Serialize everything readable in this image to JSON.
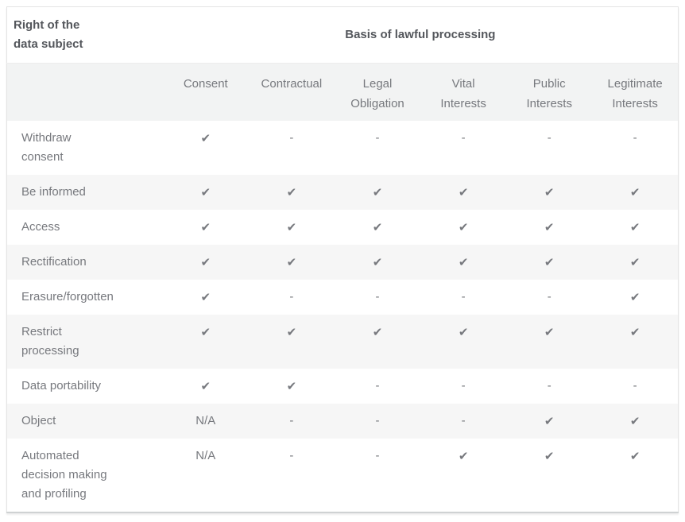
{
  "table": {
    "corner_header": "Right of the\ndata subject",
    "group_header": "Basis of lawful processing",
    "columns": [
      "Consent",
      "Contractual",
      "Legal\nObligation",
      "Vital\nInterests",
      "Public\nInterests",
      "Legitimate\nInterests"
    ],
    "rows": [
      {
        "label": "Withdraw\nconsent",
        "values": [
          "check",
          "dash",
          "dash",
          "dash",
          "dash",
          "dash"
        ]
      },
      {
        "label": "Be informed",
        "values": [
          "check",
          "check",
          "check",
          "check",
          "check",
          "check"
        ]
      },
      {
        "label": "Access",
        "values": [
          "check",
          "check",
          "check",
          "check",
          "check",
          "check"
        ]
      },
      {
        "label": "Rectification",
        "values": [
          "check",
          "check",
          "check",
          "check",
          "check",
          "check"
        ]
      },
      {
        "label": "Erasure/forgotten",
        "values": [
          "check",
          "dash",
          "dash",
          "dash",
          "dash",
          "check"
        ]
      },
      {
        "label": "Restrict\nprocessing",
        "values": [
          "check",
          "check",
          "check",
          "check",
          "check",
          "check"
        ]
      },
      {
        "label": "Data portability",
        "values": [
          "check",
          "check",
          "dash",
          "dash",
          "dash",
          "dash"
        ]
      },
      {
        "label": "Object",
        "values": [
          "na",
          "dash",
          "dash",
          "dash",
          "check",
          "check"
        ]
      },
      {
        "label": "Automated\ndecision making\nand profiling",
        "values": [
          "na",
          "dash",
          "dash",
          "check",
          "check",
          "check"
        ]
      }
    ],
    "symbols": {
      "check": "✔",
      "dash": "-",
      "na": "N/A"
    },
    "colors": {
      "header_text": "#54575c",
      "body_text": "#77797e",
      "check": "#4d4d4d",
      "dash": "#90939a",
      "stripe": "#f6f6f6",
      "column_header_bg": "#f2f3f3",
      "border": "#e4e4e4",
      "bottom_border": "#cfd2d3"
    }
  }
}
